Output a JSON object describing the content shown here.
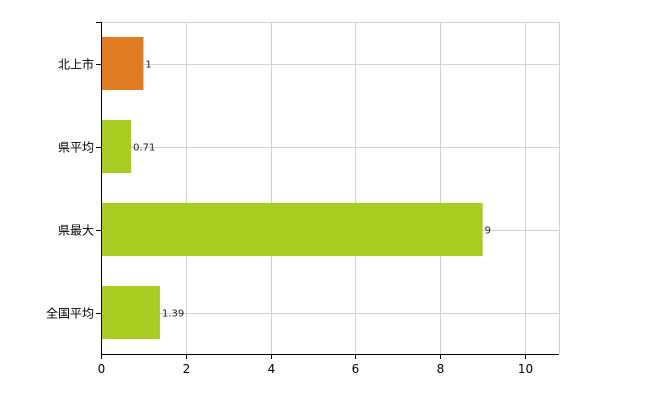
{
  "chart_data": {
    "type": "bar",
    "orientation": "horizontal",
    "title": "",
    "xlabel": "",
    "ylabel": "",
    "categories": [
      "北上市",
      "県平均",
      "県最大",
      "全国平均"
    ],
    "values": [
      1,
      0.71,
      9,
      1.39
    ],
    "value_labels": [
      "1",
      "0.71",
      "9",
      "1.39"
    ],
    "colors": [
      "#e07b22",
      "#a8cc22",
      "#a8cc22",
      "#a8cc22"
    ],
    "xlim": [
      0,
      10.8
    ],
    "x_ticks": [
      0,
      2,
      4,
      6,
      8,
      10
    ],
    "x_tick_labels": [
      "0",
      "2",
      "4",
      "6",
      "8",
      "10"
    ],
    "grid": true,
    "legend": "none"
  }
}
